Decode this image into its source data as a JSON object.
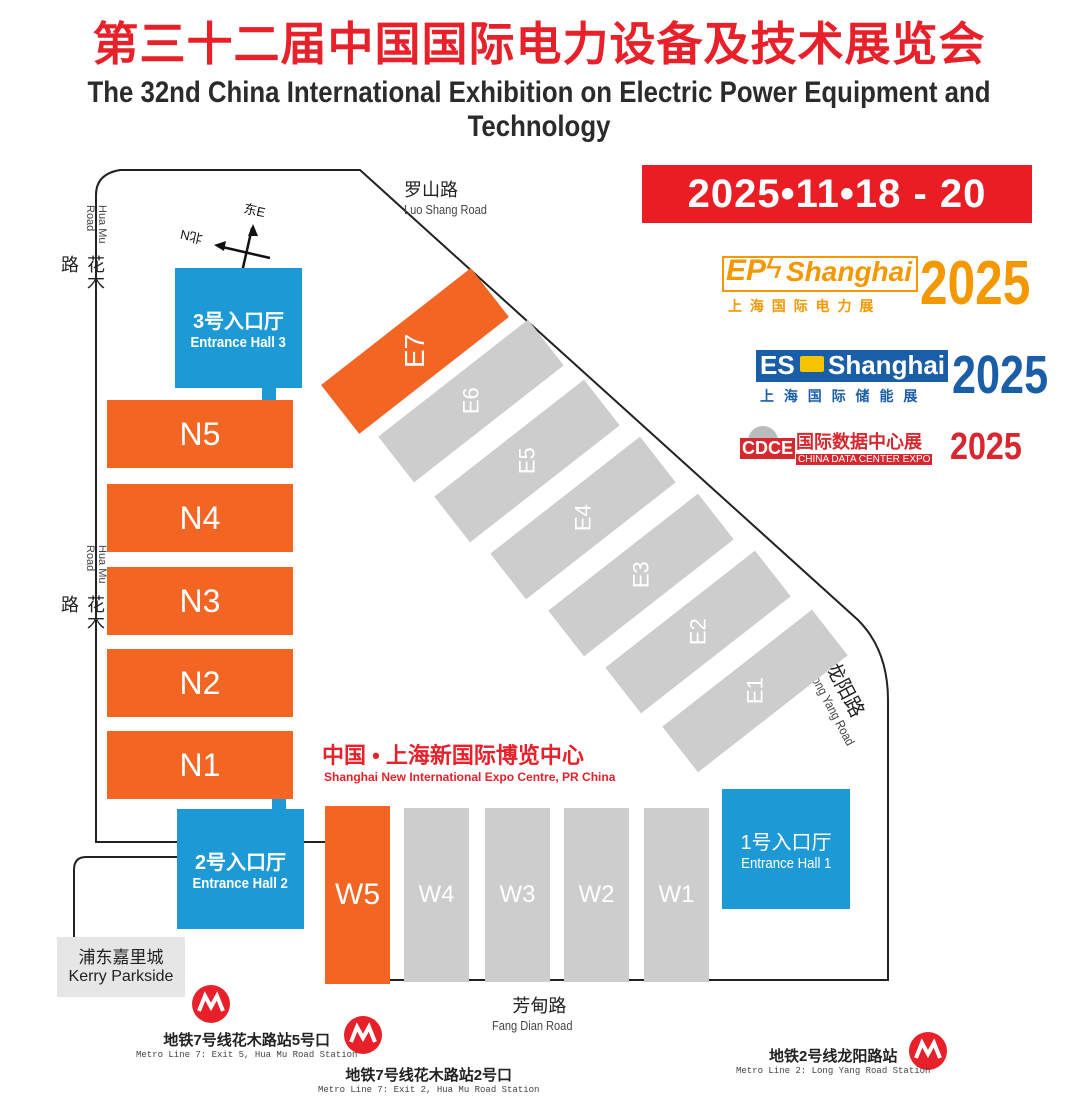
{
  "title": {
    "cn": "第三十二届中国国际电力设备及技术展览会",
    "en": "The 32nd China International Exhibition on Electric Power Equipment and Technology"
  },
  "date": "2025•11•18 - 20",
  "logos": {
    "ep": {
      "brand": "EP",
      "city": "Shanghai",
      "cn": "上 海 国 际 电 力 展",
      "year": "2025",
      "color": "#f39800"
    },
    "es": {
      "brand": "ES",
      "city": "Shanghai",
      "cn": "上 海 国 际 储 能 展",
      "year": "2025",
      "color": "#1a5ea8"
    },
    "cdce": {
      "brand": "CDCE",
      "cn": "国际数据中心展",
      "en": "CHINA DATA CENTER EXPO",
      "year": "2025",
      "color": "#d7282f"
    }
  },
  "compass": {
    "east": "东E",
    "north": "北N"
  },
  "roads": {
    "luoshan": {
      "cn": "罗山路",
      "en": "Luo Shang Road"
    },
    "huamu_top": {
      "cn": "花木路",
      "en": "Hua Mu Road"
    },
    "huamu_mid": {
      "cn": "花木路",
      "en": "Hua Mu Road"
    },
    "longyang": {
      "cn": "龙阳路",
      "en": "Long Yang Road"
    },
    "fangdian": {
      "cn": "芳甸路",
      "en": "Fang Dian Road"
    }
  },
  "entrances": {
    "hall3": {
      "cn": "3号入口厅",
      "en": "Entrance Hall 3"
    },
    "hall2": {
      "cn": "2号入口厅",
      "en": "Entrance Hall 2"
    },
    "hall1": {
      "cn": "1号入口厅",
      "en": "Entrance Hall 1"
    }
  },
  "halls_n": [
    "N5",
    "N4",
    "N3",
    "N2",
    "N1"
  ],
  "halls_e": [
    "E7",
    "E6",
    "E5",
    "E4",
    "E3",
    "E2",
    "E1"
  ],
  "halls_w": [
    "W5",
    "W4",
    "W3",
    "W2",
    "W1"
  ],
  "venue": {
    "cn": "中国 • 上海新国际博览中心",
    "en": "Shanghai New International Expo Centre, PR China"
  },
  "kerry": {
    "cn": "浦东嘉里城",
    "en": "Kerry Parkside"
  },
  "metro": {
    "line7_exit5": {
      "cn": "地铁7号线花木路站5号口",
      "en": "Metro Line 7: Exit 5, Hua Mu Road Station"
    },
    "line7_exit2": {
      "cn": "地铁7号线花木路站2号口",
      "en": "Metro Line 7: Exit 2, Hua Mu Road Station"
    },
    "line2": {
      "cn": "地铁2号线龙阳路站",
      "en": "Metro Line 2: Long Yang Road Station"
    }
  },
  "colors": {
    "accent_red": "#e8202a",
    "hall_orange": "#f26522",
    "hall_grey": "#cdcdcd",
    "entrance_blue": "#1d9ad6"
  }
}
